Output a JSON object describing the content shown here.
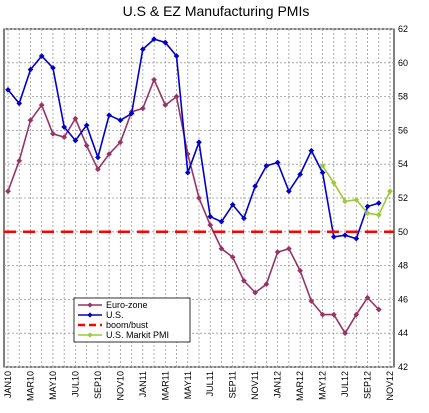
{
  "chart_data": {
    "type": "line",
    "title": "U.S & EZ Manufacturing PMIs",
    "xlabel": "",
    "ylabel": "",
    "ylim": [
      42,
      62
    ],
    "yticks": [
      42,
      44,
      46,
      48,
      50,
      52,
      54,
      56,
      58,
      60,
      62
    ],
    "grid": true,
    "legend_position": "bottom-left",
    "x": [
      "JAN10",
      "FEB10",
      "MAR10",
      "APR10",
      "MAY10",
      "JUN10",
      "JUL10",
      "AUG10",
      "SEP10",
      "OCT10",
      "NOV10",
      "DEC10",
      "JAN11",
      "FEB11",
      "MAR11",
      "APR11",
      "MAY11",
      "JUN11",
      "JUL11",
      "AUG11",
      "SEP11",
      "OCT11",
      "NOV11",
      "DEC11",
      "JAN12",
      "FEB12",
      "MAR12",
      "APR12",
      "MAY12",
      "JUN12",
      "JUL12",
      "AUG12",
      "SEP12",
      "OCT12",
      "NOV12"
    ],
    "xtick_labels": [
      "JAN10",
      "MAR10",
      "MAY10",
      "JUL10",
      "SEP10",
      "NOV10",
      "JAN11",
      "MAR11",
      "MAY11",
      "JUL11",
      "SEP11",
      "NOV11",
      "JAN12",
      "MAR12",
      "MAY12",
      "JUL12",
      "SEP12",
      "NOV12"
    ],
    "series": [
      {
        "name": "Euro-zone",
        "color": "#993366",
        "marker": "diamond",
        "values": [
          52.4,
          54.2,
          56.6,
          57.5,
          55.8,
          55.6,
          56.7,
          55.1,
          53.7,
          54.6,
          55.3,
          57.1,
          57.3,
          59.0,
          57.5,
          58.0,
          54.6,
          52.0,
          50.4,
          49.0,
          48.5,
          47.1,
          46.4,
          46.9,
          48.8,
          49.0,
          47.7,
          45.9,
          45.1,
          45.1,
          44.0,
          45.1,
          46.1,
          45.4,
          null
        ]
      },
      {
        "name": "U.S.",
        "color": "#0000cc",
        "marker": "diamond",
        "values": [
          58.4,
          57.6,
          59.6,
          60.4,
          59.7,
          56.2,
          55.4,
          56.3,
          54.4,
          56.9,
          56.6,
          57.0,
          60.8,
          61.4,
          61.2,
          60.4,
          53.5,
          55.3,
          50.9,
          50.6,
          51.6,
          50.8,
          52.7,
          53.9,
          54.1,
          52.4,
          53.4,
          54.8,
          53.5,
          49.7,
          49.8,
          49.6,
          51.5,
          51.7,
          null
        ]
      },
      {
        "name": "boom/bust",
        "color": "#ff0000",
        "style": "dashed",
        "values": [
          50,
          50,
          50,
          50,
          50,
          50,
          50,
          50,
          50,
          50,
          50,
          50,
          50,
          50,
          50,
          50,
          50,
          50,
          50,
          50,
          50,
          50,
          50,
          50,
          50,
          50,
          50,
          50,
          50,
          50,
          50,
          50,
          50,
          50,
          50
        ]
      },
      {
        "name": "U.S. Markit PMI",
        "color": "#99cc33",
        "marker": "diamond",
        "values": [
          null,
          null,
          null,
          null,
          null,
          null,
          null,
          null,
          null,
          null,
          null,
          null,
          null,
          null,
          null,
          null,
          null,
          null,
          null,
          null,
          null,
          null,
          null,
          null,
          null,
          null,
          null,
          null,
          53.9,
          52.9,
          51.8,
          51.9,
          51.1,
          51.0,
          52.4
        ]
      }
    ]
  }
}
